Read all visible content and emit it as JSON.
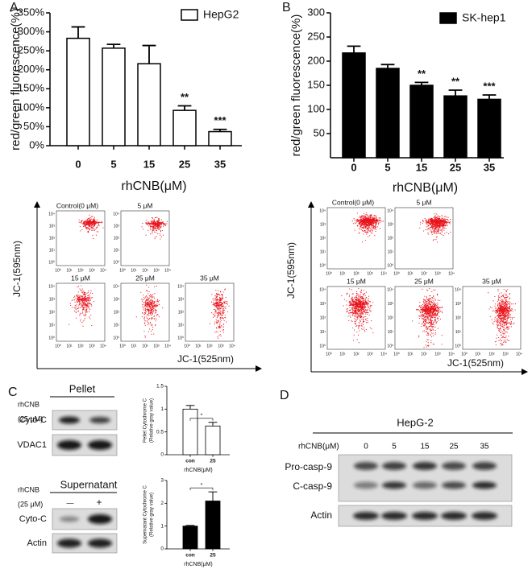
{
  "chart_data": [
    {
      "type": "bar",
      "ylabel": "red/green fluorescence(%)",
      "xlabel": "rhCNB(μM)",
      "categories": [
        "0",
        "5",
        "15",
        "25",
        "35"
      ],
      "series": [
        {
          "name": "HepG2",
          "color": "#ffffff",
          "values": [
            283,
            257,
            216,
            93,
            37
          ],
          "errors": [
            30,
            10,
            48,
            12,
            6
          ]
        }
      ],
      "significance": [
        null,
        null,
        null,
        "**",
        "***"
      ],
      "ylim": [
        0,
        350
      ],
      "yticks": [
        {
          "value": 0,
          "label": "0%"
        },
        {
          "value": 50,
          "label": "50%"
        },
        {
          "value": 100,
          "label": "100%"
        },
        {
          "value": 150,
          "label": "150%"
        },
        {
          "value": 200,
          "label": "200%"
        },
        {
          "value": 250,
          "label": "250%"
        },
        {
          "value": 300,
          "label": "300%"
        },
        {
          "value": 350,
          "label": "350%"
        }
      ]
    },
    {
      "type": "bar",
      "ylabel": "red/green fluorescence(%)",
      "xlabel": "rhCNB(μM)",
      "categories": [
        "0",
        "5",
        "15",
        "25",
        "35"
      ],
      "series": [
        {
          "name": "SK-hep1",
          "color": "#000000",
          "values": [
            217,
            185,
            150,
            128,
            121
          ],
          "errors": [
            14,
            8,
            6,
            12,
            9
          ]
        }
      ],
      "significance": [
        null,
        null,
        "**",
        "**",
        "***"
      ],
      "ylim": [
        0,
        300
      ],
      "yticks": [
        50,
        100,
        150,
        200,
        250,
        300
      ]
    },
    {
      "type": "bar",
      "ylabel": [
        "Pellet Cytochrome C",
        "(Relative gray value)"
      ],
      "xlabel": "rhCNB(μM)",
      "categories": [
        "con",
        "25"
      ],
      "series": [
        {
          "color": "#ffffff",
          "values": [
            1.0,
            0.63
          ],
          "errors": [
            0.08,
            0.08
          ]
        }
      ],
      "significance": [
        null,
        "*"
      ],
      "ylim": [
        0,
        1.5
      ],
      "yticks": [
        0,
        0.5,
        1,
        1.5
      ]
    },
    {
      "type": "bar",
      "ylabel": [
        "Supernatant Cytochrome C",
        "(Relative gray value)"
      ],
      "xlabel": "rhCNB(μM)",
      "categories": [
        "con",
        "25"
      ],
      "series": [
        {
          "color": "#000000",
          "values": [
            1.0,
            2.1
          ],
          "errors": [
            0.03,
            0.4
          ]
        }
      ],
      "significance": [
        null,
        "*"
      ],
      "ylim": [
        0,
        3
      ],
      "yticks": [
        0,
        1,
        2,
        3
      ]
    }
  ],
  "panel_labels": [
    "A",
    "B",
    "C",
    "D"
  ],
  "flow_panels": [
    {
      "y_label": "JC-1(595nm)",
      "x_label": "JC-1(525nm)",
      "plots": [
        "Control(0 μM)",
        "5 μM",
        "15 μM",
        "25 μM",
        "35 μM"
      ]
    },
    {
      "y_label": "JC-1(595nm)",
      "x_label": "JC-1(525nm)",
      "plots": [
        "Control(0 μM)",
        "5 μM",
        "15 μM",
        "25 μM",
        "35 μM"
      ]
    }
  ],
  "flow_tick_labels": [
    "10⁰",
    "10¹",
    "10²",
    "10³",
    "10⁴"
  ],
  "panel_c": {
    "treatment": "rhCNB",
    "dose": "(25  μM)",
    "minus": "—",
    "plus": "+",
    "pellet": {
      "title": "Pellet",
      "rows": [
        "Cyto-C",
        "VDAC1"
      ]
    },
    "supernatant": {
      "title": "Supernatant",
      "rows": [
        "Cyto-C",
        "Actin"
      ]
    }
  },
  "panel_d": {
    "title": "HepG-2",
    "dose_label": "rhCNB(μM)",
    "doses": [
      "0",
      "5",
      "15",
      "25",
      "35"
    ],
    "rows": [
      "Pro-casp-9",
      "C-casp-9",
      "Actin"
    ]
  }
}
